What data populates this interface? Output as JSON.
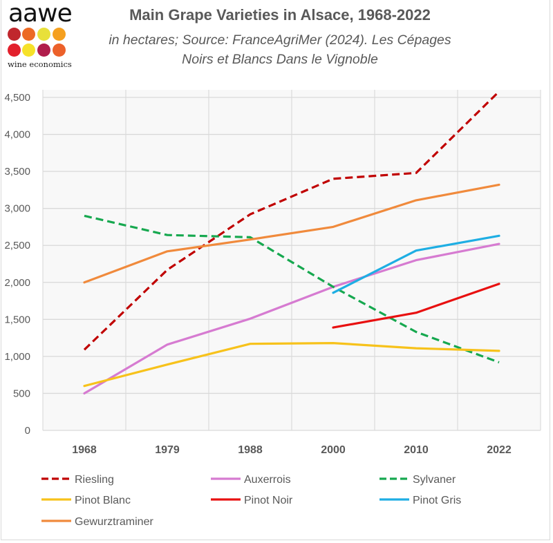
{
  "logo": {
    "wordmark": "aawe",
    "tagline": "wine economics",
    "dot_colors": [
      "#c0272d",
      "#ec6a25",
      "#e8e03a",
      "#f5a01f",
      "#e2202c",
      "#f6e12a",
      "#b01e4c",
      "#ec612a"
    ]
  },
  "chart_data": {
    "type": "line",
    "title": "Main Grape Varieties in Alsace, 1968-2022",
    "subtitle_line1": "in hectares; Source: FranceAgriMer (2024). Les Cépages",
    "subtitle_line2": "Noirs et Blancs Dans le Vignoble",
    "xlabel": "",
    "ylabel": "",
    "categories": [
      "1968",
      "1979",
      "1988",
      "2000",
      "2010",
      "2022"
    ],
    "ylim": [
      0,
      4500
    ],
    "yticks": [
      0,
      500,
      1000,
      1500,
      2000,
      2500,
      3000,
      3500,
      4000,
      4500
    ],
    "ytick_labels": [
      "0",
      "500",
      "1,000",
      "1,500",
      "2,000",
      "2,500",
      "3,000",
      "3,500",
      "4,000",
      "4,500"
    ],
    "grid": true,
    "legend_position": "bottom",
    "series": [
      {
        "name": "Riesling",
        "color": "#c00000",
        "dash": true,
        "values": [
          1090,
          2170,
          2920,
          3400,
          3480,
          4580
        ]
      },
      {
        "name": "Auxerrois",
        "color": "#d67bd1",
        "dash": false,
        "values": [
          500,
          1160,
          1510,
          1940,
          2300,
          2520
        ]
      },
      {
        "name": "Sylvaner",
        "color": "#16a84f",
        "dash": true,
        "values": [
          2900,
          2640,
          2610,
          1940,
          1330,
          920
        ]
      },
      {
        "name": "Pinot Blanc",
        "color": "#f7c21b",
        "dash": false,
        "values": [
          600,
          890,
          1170,
          1180,
          1110,
          1075
        ]
      },
      {
        "name": "Pinot Noir",
        "color": "#e81010",
        "dash": false,
        "values": [
          null,
          null,
          null,
          1390,
          1590,
          1980
        ]
      },
      {
        "name": "Pinot Gris",
        "color": "#1eaee3",
        "dash": false,
        "values": [
          null,
          null,
          null,
          1860,
          2430,
          2630
        ]
      },
      {
        "name": "Gewurztraminer",
        "color": "#f08a3c",
        "dash": false,
        "values": [
          2000,
          2420,
          2580,
          2750,
          3110,
          3320
        ]
      }
    ]
  }
}
